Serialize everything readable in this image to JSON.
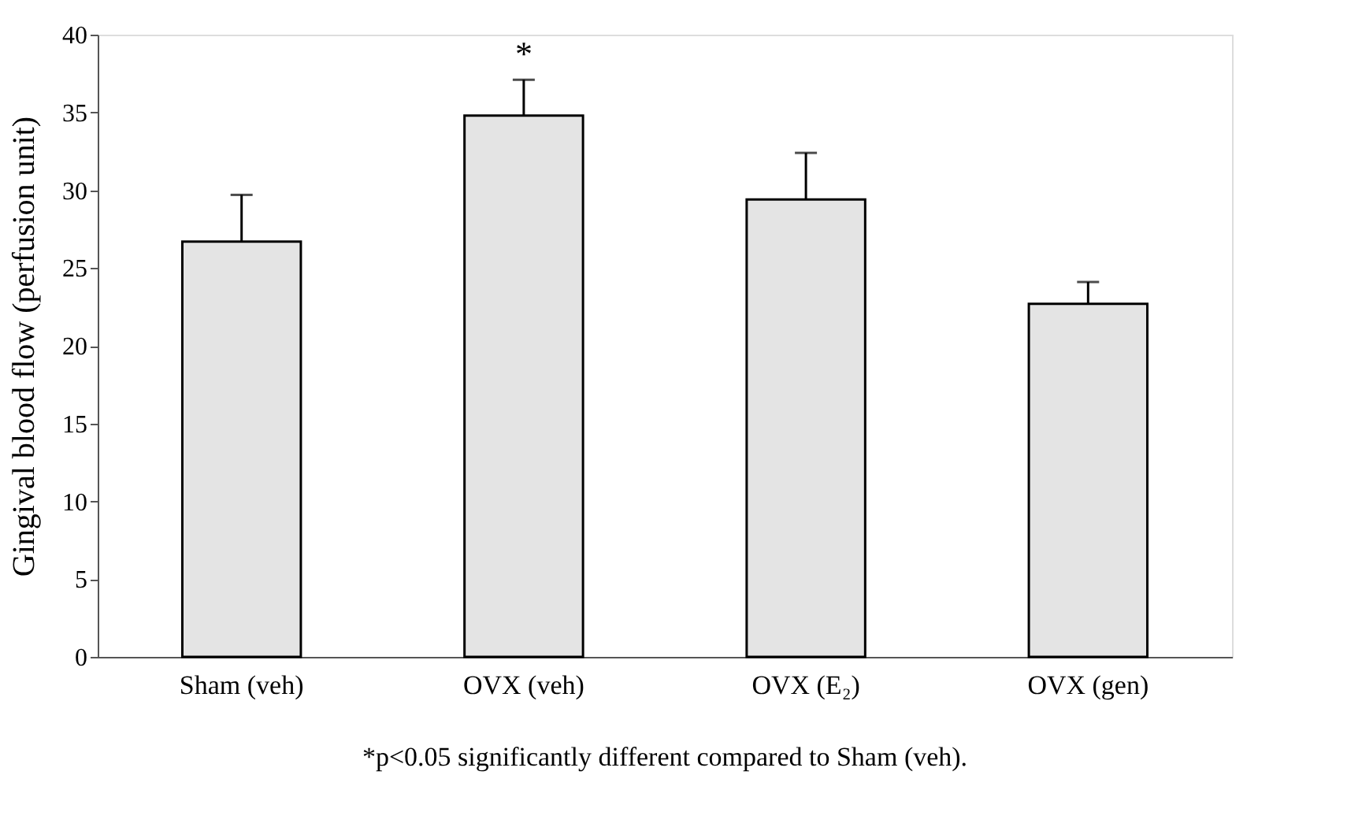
{
  "chart_data": {
    "type": "bar",
    "ylabel": "Gingival blood flow (perfusion unit)",
    "categories": [
      "Sham (veh)",
      "OVX (veh)",
      "OVX (E₂)",
      "OVX (gen)"
    ],
    "values": [
      26.7,
      34.8,
      29.4,
      22.7
    ],
    "errors": [
      3.0,
      2.3,
      3.0,
      1.4
    ],
    "color": "#e4e4e4",
    "ylim": [
      0,
      40
    ],
    "yticks": [
      0,
      5,
      10,
      15,
      20,
      25,
      30,
      35,
      40
    ],
    "grid": false,
    "annotations": [
      {
        "text": "*",
        "x": "OVX (veh)",
        "y": 37.1
      },
      "*p<0.05 significantly different compared to Sham (veh)."
    ]
  }
}
